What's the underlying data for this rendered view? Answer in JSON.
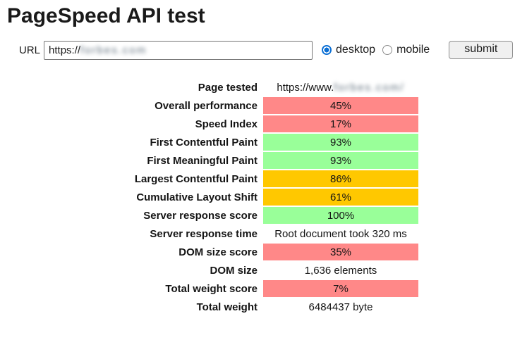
{
  "title": "PageSpeed API test",
  "form": {
    "url_label": "URL",
    "url_value_visible": "https://",
    "url_value_blurred": "forbes.com",
    "radios": [
      {
        "label": "desktop",
        "checked": true
      },
      {
        "label": "mobile",
        "checked": false
      }
    ],
    "submit_label": "submit"
  },
  "colors": {
    "red": "#ff8888",
    "green": "#99ff99",
    "orange": "#ffc800",
    "radio_accent": "#0b6fd4"
  },
  "table": {
    "rows": [
      {
        "label": "Page tested",
        "value_prefix": "https://www.",
        "value_blurred": "forbes.com/",
        "color": "none"
      },
      {
        "label": "Overall performance",
        "value": "45%",
        "color": "red"
      },
      {
        "label": "Speed Index",
        "value": "17%",
        "color": "red"
      },
      {
        "label": "First Contentful Paint",
        "value": "93%",
        "color": "green"
      },
      {
        "label": "First Meaningful Paint",
        "value": "93%",
        "color": "green"
      },
      {
        "label": "Largest Contentful Paint",
        "value": "86%",
        "color": "orange"
      },
      {
        "label": "Cumulative Layout Shift",
        "value": "61%",
        "color": "orange"
      },
      {
        "label": "Server response score",
        "value": "100%",
        "color": "green"
      },
      {
        "label": "Server response time",
        "value": "Root document took 320 ms",
        "color": "none"
      },
      {
        "label": "DOM size score",
        "value": "35%",
        "color": "red"
      },
      {
        "label": "DOM size",
        "value": "1,636 elements",
        "color": "none"
      },
      {
        "label": "Total weight score",
        "value": "7%",
        "color": "red"
      },
      {
        "label": "Total weight",
        "value": "6484437 byte",
        "color": "none"
      }
    ]
  }
}
